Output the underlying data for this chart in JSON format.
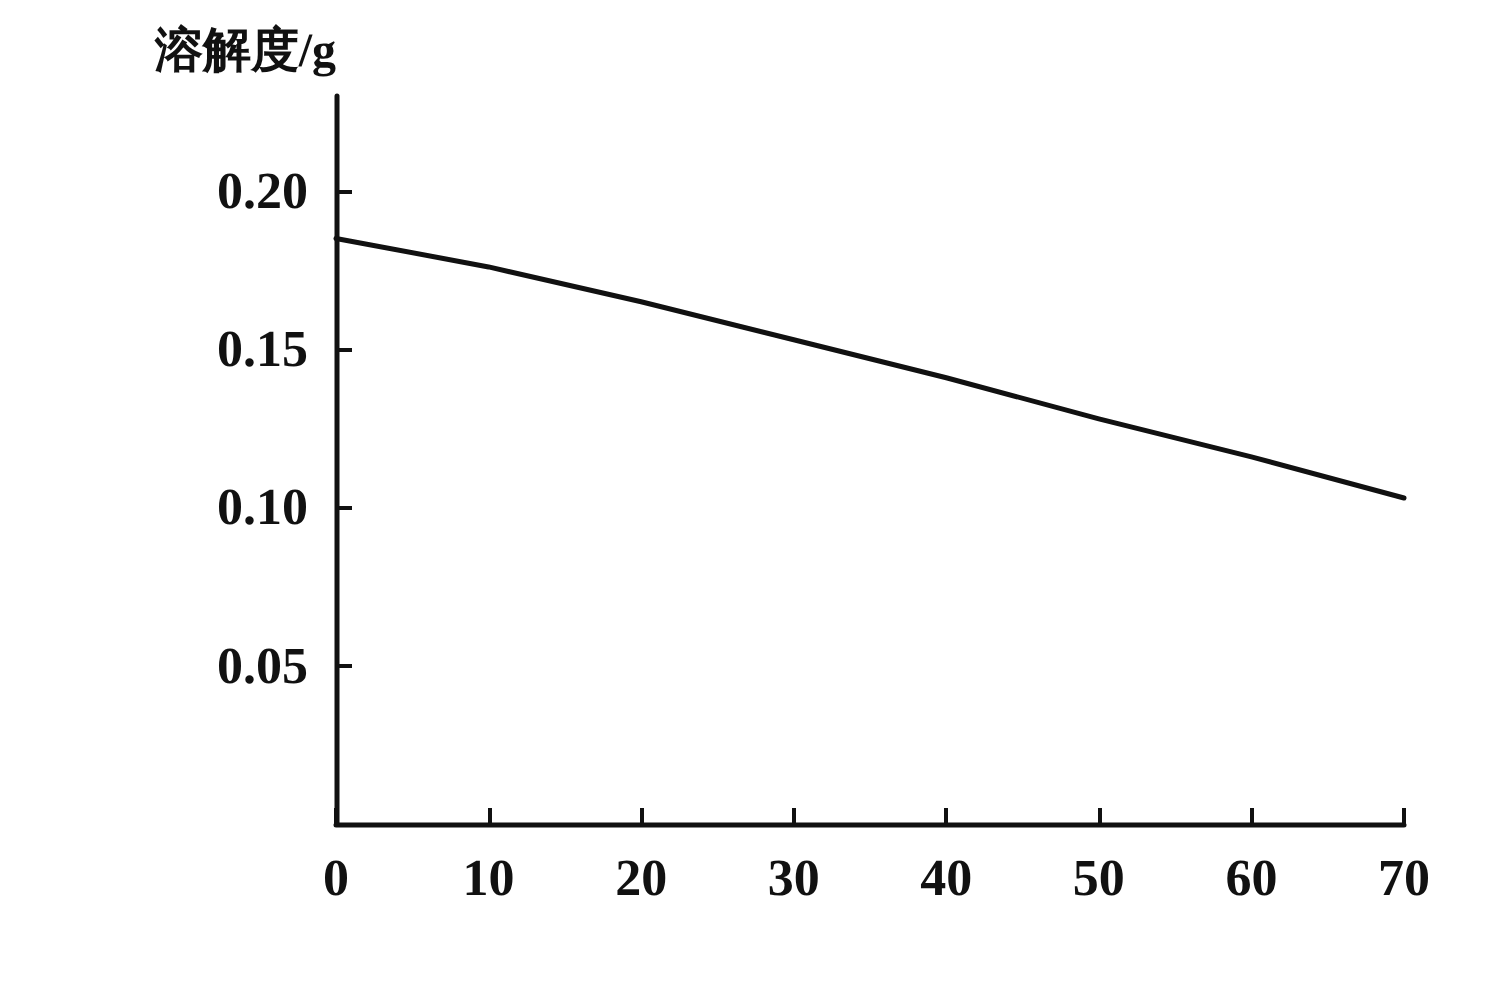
{
  "chart_data": {
    "type": "line",
    "ylabel": "溶解度/g",
    "x": [
      0,
      10,
      20,
      30,
      40,
      50,
      60,
      70
    ],
    "series": [
      {
        "color": "#111111",
        "values": [
          0.185,
          0.176,
          0.165,
          0.153,
          0.141,
          0.128,
          0.116,
          0.103
        ]
      }
    ],
    "xlim": [
      0,
      70
    ],
    "xticks": [
      0,
      10,
      20,
      30,
      40,
      50,
      60,
      70
    ],
    "ylim": [
      0,
      0.23
    ],
    "yticks": [
      {
        "value": 0.05,
        "label": "0.05"
      },
      {
        "value": 0.1,
        "label": "0.10"
      },
      {
        "value": 0.15,
        "label": "0.15"
      },
      {
        "value": 0.2,
        "label": "0.20"
      }
    ],
    "grid": false,
    "marker": "none",
    "line_style": "solid"
  }
}
